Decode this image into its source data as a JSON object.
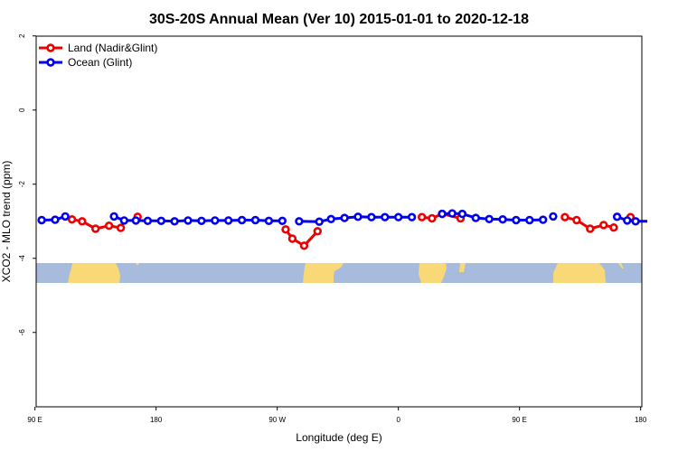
{
  "chart_data": {
    "type": "line",
    "title": "30S-20S Annual Mean (Ver 10)   2015-01-01 to 2020-12-18",
    "xlabel": "Longitude (deg E)",
    "ylabel": "XCO2 - MLO trend (ppm)",
    "xlim": [
      90,
      450
    ],
    "ylim": [
      -8,
      2
    ],
    "x_ticks": [
      {
        "value": 90,
        "label": "90 E"
      },
      {
        "value": 162,
        "label": "180"
      },
      {
        "value": 234,
        "label": "90 W"
      },
      {
        "value": 306,
        "label": "0"
      },
      {
        "value": 378,
        "label": "90 E"
      },
      {
        "value": 450,
        "label": "180"
      }
    ],
    "y_ticks": [
      {
        "value": 2,
        "label": "2"
      },
      {
        "value": 0,
        "label": "0"
      },
      {
        "value": -2,
        "label": "-2"
      },
      {
        "value": -4,
        "label": "-4"
      },
      {
        "value": -6,
        "label": "-6"
      }
    ],
    "grid": false,
    "legend_position": "top-left",
    "series": [
      {
        "name": "Land (Nadir&Glint)",
        "color": "#ee0000",
        "segments": [
          [
            [
              112,
              -2.95
            ],
            [
              118,
              -3.0
            ],
            [
              126,
              -3.2
            ],
            [
              134,
              -3.12
            ],
            [
              141,
              -3.18
            ]
          ],
          [
            [
              151,
              -2.88
            ]
          ],
          [
            [
              239,
              -3.22
            ],
            [
              243,
              -3.47
            ],
            [
              250,
              -3.66
            ],
            [
              258,
              -3.27
            ]
          ],
          [
            [
              320,
              -2.89
            ],
            [
              326,
              -2.92
            ],
            [
              332,
              -2.8
            ],
            [
              343,
              -2.92
            ]
          ],
          [
            [
              405,
              -2.89
            ],
            [
              412,
              -2.97
            ],
            [
              420,
              -3.2
            ],
            [
              428,
              -3.1
            ],
            [
              434,
              -3.17
            ]
          ],
          [
            [
              444,
              -2.89
            ]
          ]
        ]
      },
      {
        "name": "Ocean (Glint)",
        "color": "#0000ee",
        "segments": [
          [
            [
              94,
              -2.97
            ],
            [
              102,
              -2.96
            ],
            [
              108,
              -2.87
            ]
          ],
          [
            [
              137,
              -2.87
            ],
            [
              143,
              -2.98
            ],
            [
              150,
              -2.98
            ],
            [
              157,
              -2.99
            ],
            [
              165,
              -2.99
            ],
            [
              173,
              -3.0
            ],
            [
              181,
              -2.98
            ],
            [
              189,
              -2.99
            ],
            [
              197,
              -2.98
            ],
            [
              205,
              -2.98
            ],
            [
              213,
              -2.97
            ],
            [
              221,
              -2.97
            ],
            [
              229,
              -2.99
            ],
            [
              237,
              -2.99
            ]
          ],
          [
            [
              247,
              -3.0
            ],
            [
              259,
              -3.01
            ],
            [
              266,
              -2.94
            ],
            [
              274,
              -2.91
            ],
            [
              282,
              -2.88
            ],
            [
              290,
              -2.89
            ],
            [
              298,
              -2.89
            ],
            [
              306,
              -2.89
            ],
            [
              314,
              -2.89
            ]
          ],
          [
            [
              332,
              -2.8
            ],
            [
              338,
              -2.79
            ],
            [
              344,
              -2.8
            ],
            [
              352,
              -2.91
            ],
            [
              360,
              -2.94
            ],
            [
              368,
              -2.95
            ],
            [
              376,
              -2.97
            ],
            [
              384,
              -2.97
            ],
            [
              392,
              -2.96
            ]
          ],
          [
            [
              398,
              -2.87
            ]
          ],
          [
            [
              436,
              -2.88
            ],
            [
              442,
              -2.98
            ],
            [
              447,
              -3.0
            ],
            [
              454,
              -3.0
            ]
          ]
        ]
      }
    ]
  }
}
